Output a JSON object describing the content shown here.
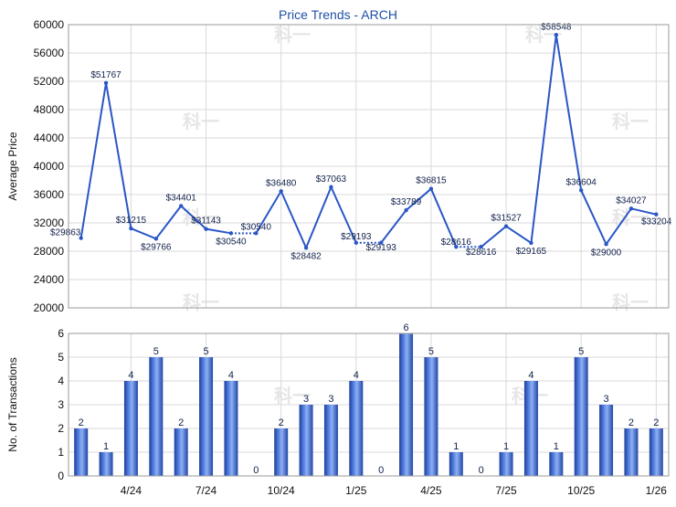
{
  "chart_data": [
    {
      "type": "line",
      "title": "Price Trends - ARCH",
      "ylabel": "Average Price",
      "ylim": [
        20000,
        60000
      ],
      "yticks": [
        "20000",
        "24000",
        "28000",
        "32000",
        "36000",
        "40000",
        "44000",
        "48000",
        "52000",
        "56000",
        "60000"
      ],
      "grid": true,
      "series": [
        {
          "color": "#2a56c6",
          "values": [
            29863,
            51767,
            31215,
            29766,
            34401,
            31143,
            30540,
            30540,
            36480,
            28482,
            37063,
            29193,
            29193,
            33789,
            36815,
            28616,
            28616,
            31527,
            29165,
            58548,
            36604,
            29000,
            34027,
            33204
          ],
          "labels": [
            "$29863",
            "$51767",
            "$31215",
            "$29766",
            "$34401",
            "$31143",
            "$30540",
            "$30540",
            "$36480",
            "$28482",
            "$37063",
            "$29193",
            "$29193",
            "$33789",
            "$36815",
            "$28616",
            "$28616",
            "$31527",
            "$29165",
            "$58548",
            "$36604",
            "$29000",
            "$34027",
            "$33204"
          ],
          "dotted_segments": [
            [
              6,
              7
            ],
            [
              11,
              12
            ],
            [
              15,
              16
            ]
          ]
        }
      ]
    },
    {
      "type": "bar",
      "ylabel": "No. of Transactions",
      "ylim": [
        0,
        6
      ],
      "yticks": [
        "0",
        "1",
        "2",
        "3",
        "4",
        "5",
        "6"
      ],
      "grid": true,
      "color": "#2a56c6",
      "values": [
        2,
        1,
        4,
        5,
        2,
        5,
        4,
        0,
        2,
        3,
        3,
        4,
        0,
        6,
        5,
        1,
        0,
        1,
        4,
        1,
        5,
        3,
        2,
        2
      ],
      "xtick_labels": [
        {
          "index": 2,
          "label": "4/24"
        },
        {
          "index": 5,
          "label": "7/24"
        },
        {
          "index": 8,
          "label": "10/24"
        },
        {
          "index": 11,
          "label": "1/25"
        },
        {
          "index": 14,
          "label": "4/25"
        },
        {
          "index": 17,
          "label": "7/25"
        },
        {
          "index": 20,
          "label": "10/25"
        },
        {
          "index": 23,
          "label": "1/26"
        }
      ]
    }
  ]
}
